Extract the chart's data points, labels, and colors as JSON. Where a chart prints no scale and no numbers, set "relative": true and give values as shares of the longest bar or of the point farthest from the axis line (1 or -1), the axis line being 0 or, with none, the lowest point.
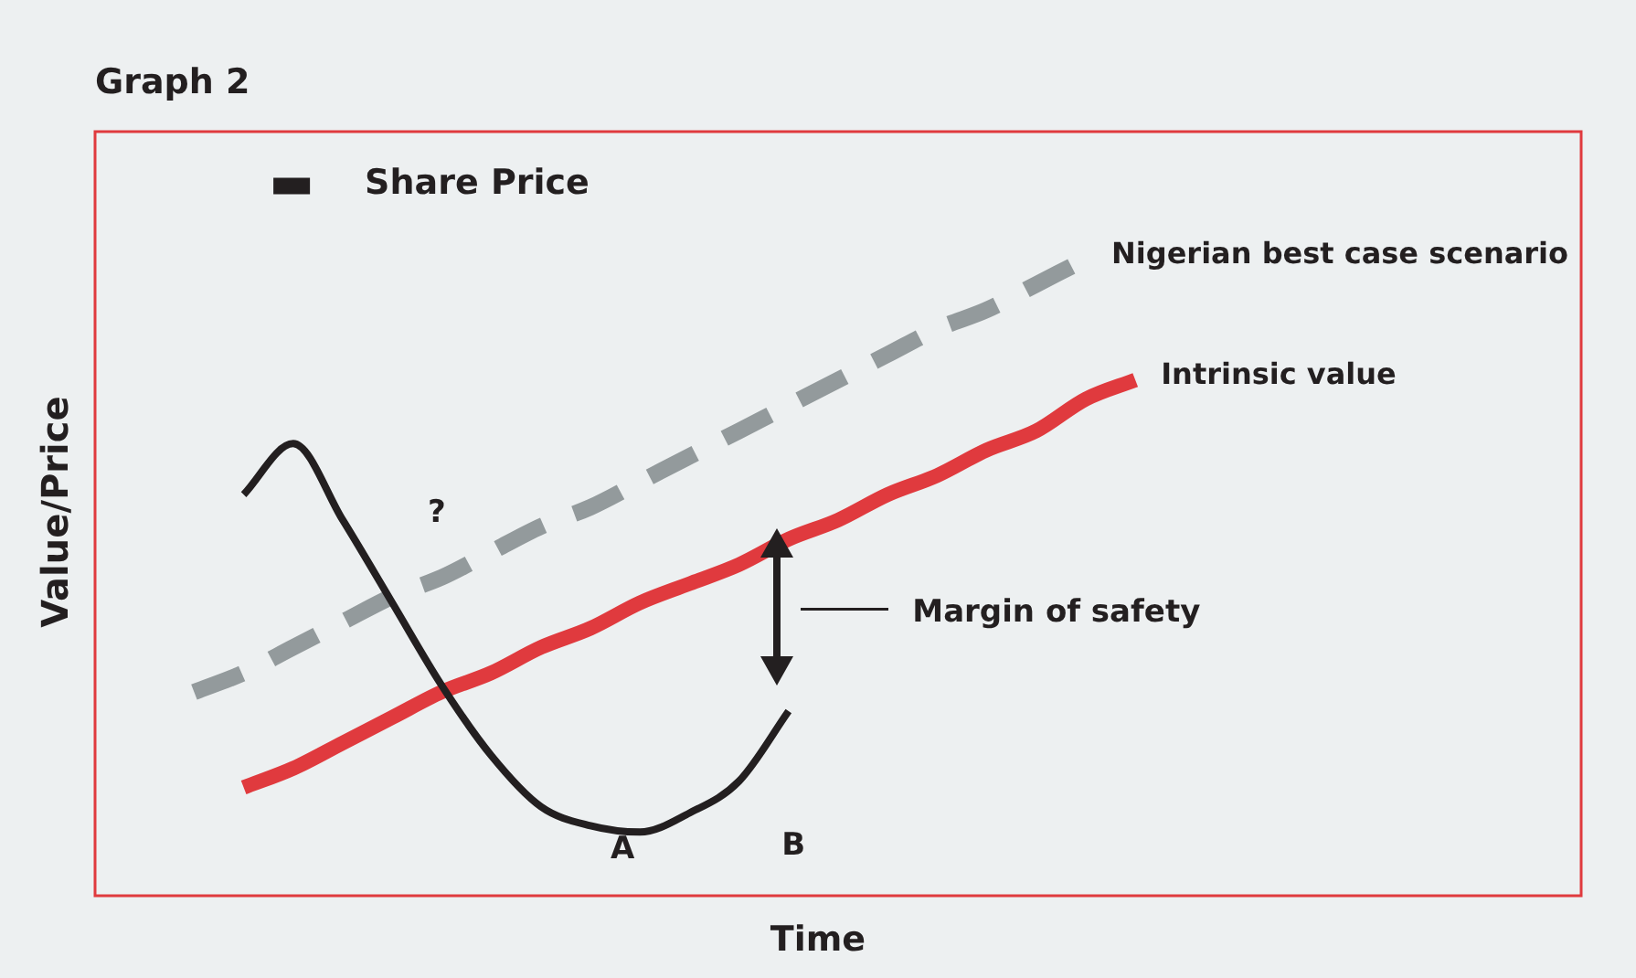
{
  "chart_data": {
    "type": "line",
    "title": "Graph 2",
    "xlabel": "Time",
    "ylabel": "Value/Price",
    "relative": true,
    "legend": "top left",
    "categories": [
      null,
      null,
      null,
      null,
      null,
      null,
      null,
      null,
      null,
      null,
      null,
      null,
      null,
      null,
      null,
      null,
      null,
      null,
      null,
      null,
      null,
      null,
      null,
      null,
      null,
      null,
      null,
      null,
      null,
      null,
      null
    ],
    "series": [
      {
        "name": "Share Price",
        "color": "#231f20",
        "values": [
          null,
          null,
          null,
          0.63,
          0.71,
          0.59,
          0.46,
          0.33,
          0.22,
          0.14,
          0.11,
          0.1,
          0.13,
          0.18,
          0.29,
          null,
          null,
          null,
          null,
          null,
          null,
          null,
          null,
          null,
          null,
          null,
          null,
          null,
          null,
          null,
          null
        ]
      },
      {
        "name": "Nigerian best case scenario",
        "color": "#939a9c",
        "line_style": "dashed",
        "values": [
          null,
          null,
          0.32,
          0.35,
          0.39,
          0.43,
          0.47,
          0.5,
          0.54,
          0.58,
          0.61,
          0.65,
          0.69,
          0.73,
          0.77,
          0.81,
          0.85,
          0.89,
          0.92,
          0.96,
          1,
          null,
          null,
          null,
          null,
          null,
          null,
          null,
          null,
          null,
          null
        ]
      },
      {
        "name": "Intrinsic value",
        "color": "#e03a3e",
        "values": [
          null,
          null,
          null,
          0.17,
          0.2,
          0.24,
          0.28,
          0.32,
          0.35,
          0.39,
          0.42,
          0.46,
          0.49,
          0.52,
          0.56,
          0.59,
          0.63,
          0.66,
          0.7,
          0.73,
          0.78,
          0.81,
          null,
          null,
          null,
          null,
          null,
          null,
          null,
          null,
          null
        ]
      }
    ],
    "annotations": [
      "?",
      "A",
      "B",
      "Margin of safety"
    ]
  }
}
